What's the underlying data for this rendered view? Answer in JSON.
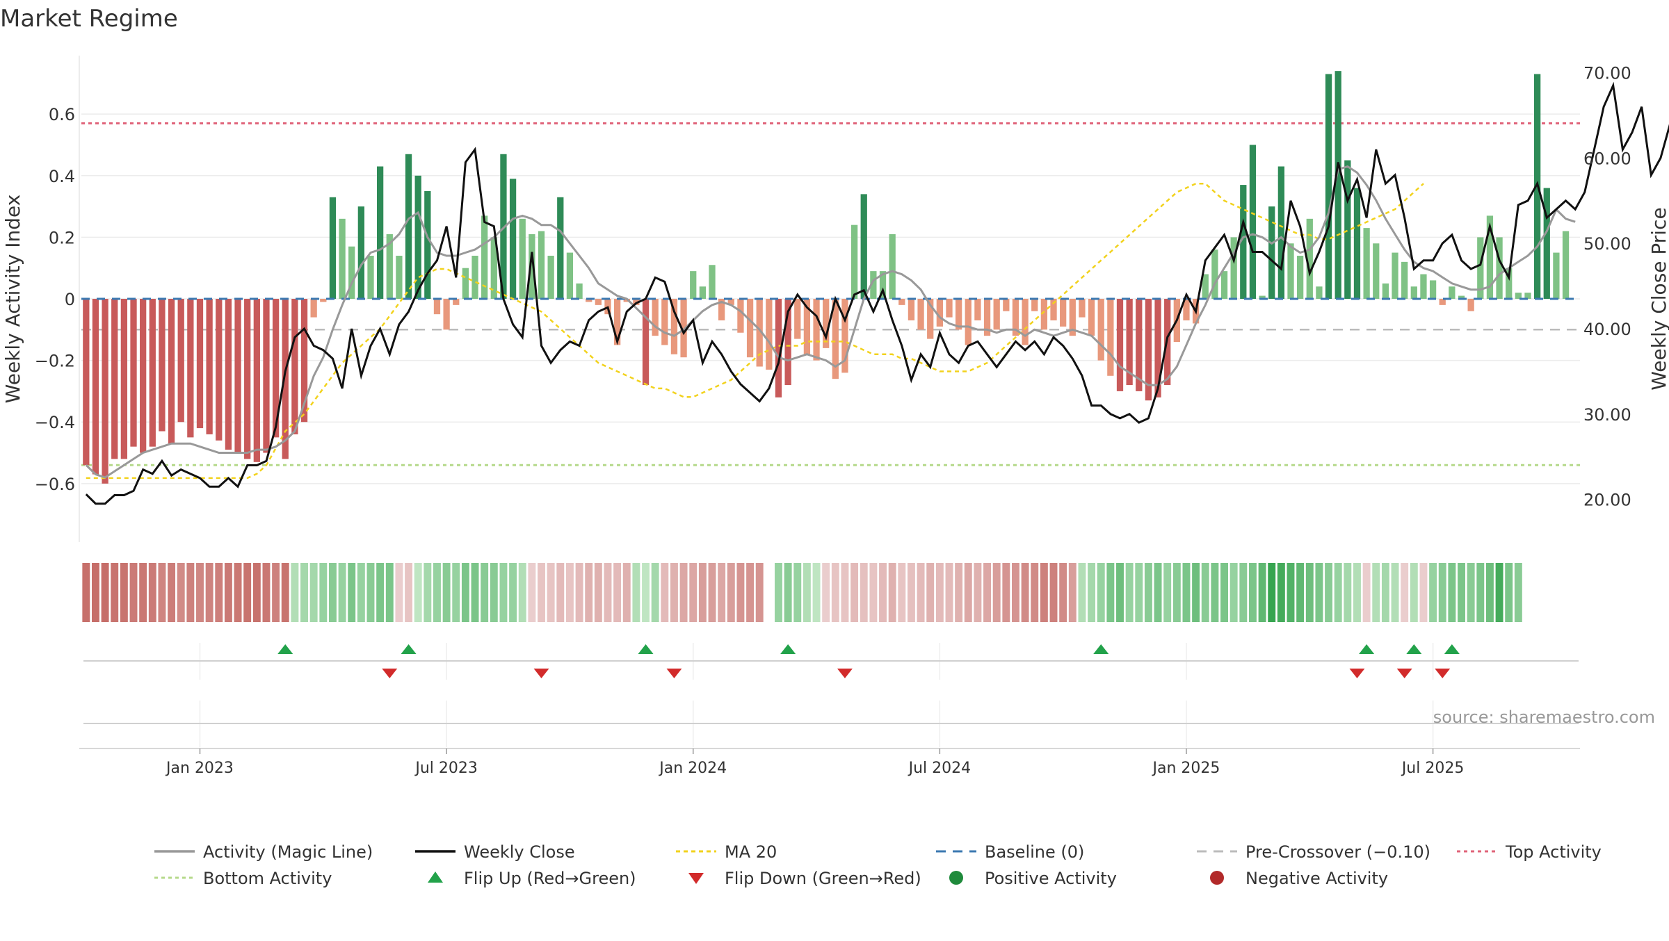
{
  "chart_data": {
    "type": "bar",
    "title": "Market Regime",
    "source": "source: sharemaestro.com",
    "ylabel_left": "Weekly Activity Index",
    "ylabel_right": "Weekly Close Price",
    "ylim_left": [
      -0.79,
      0.79
    ],
    "ylim_right": [
      15,
      72
    ],
    "left_ticks": [
      {
        "v": 0.6,
        "label": "0.6"
      },
      {
        "v": 0.4,
        "label": "0.4"
      },
      {
        "v": 0.2,
        "label": "0.2"
      },
      {
        "v": 0,
        "label": "0"
      },
      {
        "v": -0.2,
        "label": "−0.2"
      },
      {
        "v": -0.4,
        "label": "−0.4"
      },
      {
        "v": -0.6,
        "label": "−0.6"
      }
    ],
    "right_ticks": [
      {
        "v": 70,
        "label": "70.00"
      },
      {
        "v": 60,
        "label": "60.00"
      },
      {
        "v": 50,
        "label": "50.00"
      },
      {
        "v": 40,
        "label": "40.00"
      },
      {
        "v": 30,
        "label": "30.00"
      },
      {
        "v": 20,
        "label": "20.00"
      }
    ],
    "x_ticks": [
      {
        "i": 12,
        "label": "Jan 2023"
      },
      {
        "i": 38,
        "label": "Jul 2023"
      },
      {
        "i": 64,
        "label": "Jan 2024"
      },
      {
        "i": 90,
        "label": "Jul 2024"
      },
      {
        "i": 116,
        "label": "Jan 2025"
      },
      {
        "i": 142,
        "label": "Jul 2025"
      }
    ],
    "weeks": 158,
    "reference_lines": {
      "top_activity": 0.57,
      "bottom_activity": -0.54,
      "pre_crossover": -0.1,
      "baseline": 0
    },
    "activity_index": [
      -0.54,
      -0.57,
      -0.6,
      -0.52,
      -0.52,
      -0.48,
      -0.5,
      -0.48,
      -0.43,
      -0.47,
      -0.4,
      -0.45,
      -0.42,
      -0.44,
      -0.46,
      -0.49,
      -0.5,
      -0.52,
      -0.53,
      -0.5,
      -0.45,
      -0.52,
      -0.44,
      -0.4,
      -0.06,
      -0.01,
      0.33,
      0.26,
      0.17,
      0.3,
      0.14,
      0.43,
      0.21,
      0.14,
      0.47,
      0.4,
      0.35,
      -0.05,
      -0.1,
      -0.02,
      0.1,
      0.14,
      0.27,
      0.2,
      0.47,
      0.39,
      0.26,
      0.21,
      0.22,
      0.14,
      0.33,
      0.15,
      0.05,
      -0.01,
      -0.02,
      -0.05,
      -0.15,
      -0.01,
      -0.02,
      -0.28,
      -0.12,
      -0.15,
      -0.18,
      -0.19,
      0.09,
      0.04,
      0.11,
      -0.07,
      -0.02,
      -0.11,
      -0.19,
      -0.22,
      -0.23,
      -0.32,
      -0.28,
      -0.13,
      -0.18,
      -0.2,
      -0.16,
      -0.26,
      -0.24,
      0.24,
      0.34,
      0.09,
      0.09,
      0.21,
      -0.02,
      -0.07,
      -0.1,
      -0.13,
      -0.09,
      -0.06,
      -0.1,
      -0.15,
      -0.07,
      -0.12,
      -0.1,
      -0.04,
      -0.12,
      -0.15,
      -0.04,
      -0.1,
      -0.07,
      -0.09,
      -0.12,
      -0.06,
      -0.12,
      -0.2,
      -0.25,
      -0.3,
      -0.28,
      -0.3,
      -0.33,
      -0.32,
      -0.28,
      -0.14,
      -0.07,
      -0.08,
      0.08,
      0.16,
      0.09,
      0.2,
      0.37,
      0.5,
      0.01,
      0.3,
      0.43,
      0.18,
      0.14,
      0.26,
      0.04,
      0.73,
      0.74,
      0.45,
      0.36,
      0.23,
      0.18,
      0.05,
      0.15,
      0.12,
      0.04,
      0.08,
      0.06,
      -0.02,
      0.04,
      0.01,
      -0.04,
      0.2,
      0.27,
      0.2,
      0.1,
      0.02,
      0.02,
      0.73,
      0.36,
      0.15,
      0.22
    ],
    "magic_line": [
      -0.54,
      -0.57,
      -0.58,
      -0.56,
      -0.54,
      -0.52,
      -0.5,
      -0.49,
      -0.48,
      -0.47,
      -0.47,
      -0.47,
      -0.48,
      -0.49,
      -0.5,
      -0.5,
      -0.5,
      -0.5,
      -0.49,
      -0.49,
      -0.48,
      -0.46,
      -0.43,
      -0.34,
      -0.25,
      -0.19,
      -0.1,
      -0.02,
      0.05,
      0.11,
      0.15,
      0.16,
      0.18,
      0.21,
      0.26,
      0.28,
      0.2,
      0.15,
      0.14,
      0.14,
      0.15,
      0.16,
      0.18,
      0.2,
      0.23,
      0.26,
      0.27,
      0.26,
      0.24,
      0.24,
      0.22,
      0.18,
      0.14,
      0.1,
      0.05,
      0.03,
      0.01,
      0.0,
      -0.03,
      -0.06,
      -0.09,
      -0.11,
      -0.12,
      -0.1,
      -0.07,
      -0.04,
      -0.02,
      -0.01,
      -0.02,
      -0.04,
      -0.07,
      -0.1,
      -0.14,
      -0.19,
      -0.2,
      -0.19,
      -0.18,
      -0.19,
      -0.2,
      -0.22,
      -0.2,
      -0.1,
      0.0,
      0.06,
      0.08,
      0.09,
      0.08,
      0.06,
      0.03,
      -0.02,
      -0.06,
      -0.08,
      -0.09,
      -0.09,
      -0.1,
      -0.1,
      -0.11,
      -0.1,
      -0.1,
      -0.12,
      -0.1,
      -0.11,
      -0.12,
      -0.11,
      -0.1,
      -0.11,
      -0.12,
      -0.15,
      -0.18,
      -0.22,
      -0.24,
      -0.26,
      -0.28,
      -0.28,
      -0.26,
      -0.22,
      -0.15,
      -0.08,
      -0.02,
      0.05,
      0.1,
      0.15,
      0.2,
      0.21,
      0.2,
      0.18,
      0.2,
      0.17,
      0.15,
      0.16,
      0.2,
      0.28,
      0.42,
      0.43,
      0.41,
      0.37,
      0.32,
      0.26,
      0.21,
      0.16,
      0.12,
      0.1,
      0.09,
      0.07,
      0.05,
      0.04,
      0.03,
      0.03,
      0.04,
      0.08,
      0.1,
      0.12,
      0.14,
      0.17,
      0.22,
      0.29,
      0.26,
      0.25
    ],
    "weekly_close": [
      20.6,
      19.5,
      19.5,
      20.5,
      20.5,
      21,
      23.5,
      23,
      24.5,
      22.8,
      23.5,
      23,
      22.5,
      21.5,
      21.5,
      22.5,
      21.5,
      24,
      24,
      24.5,
      28.5,
      35,
      39,
      40,
      38,
      37.5,
      36.5,
      33,
      40,
      34.5,
      38,
      40,
      37,
      40.5,
      42,
      44.5,
      46.5,
      48,
      52,
      46,
      59.5,
      61,
      52.5,
      52,
      43.5,
      40.5,
      39,
      49,
      38,
      36,
      37.5,
      38.5,
      38,
      41,
      42,
      42.5,
      38.5,
      42,
      43,
      43.5,
      46,
      45.5,
      42,
      39.5,
      41,
      36,
      38.5,
      37,
      35,
      33.5,
      32.5,
      31.5,
      33,
      36,
      42,
      44,
      42.5,
      41.5,
      39,
      43.5,
      41,
      44,
      44.5,
      42,
      44.5,
      41,
      38,
      34,
      37,
      35.5,
      39.5,
      37,
      36,
      38,
      38.5,
      37,
      35.5,
      37,
      38.5,
      37.5,
      38.5,
      37,
      39,
      38,
      36.5,
      34.5,
      31,
      31,
      30,
      29.5,
      30,
      29,
      29.5,
      33,
      39,
      41,
      44,
      42,
      48,
      49.5,
      51,
      48,
      52.5,
      49,
      49,
      48,
      47,
      55,
      52,
      46.5,
      49,
      52,
      59.5,
      55,
      57.5,
      53,
      61,
      57,
      58,
      53,
      47,
      48,
      48,
      50,
      51,
      48,
      47,
      47.5,
      52,
      48,
      46,
      54.5,
      55,
      57,
      53,
      54,
      55,
      54,
      56,
      61,
      66,
      68.5,
      61,
      63,
      66,
      58,
      60,
      64
    ],
    "ma20": [
      22.5,
      22.5,
      22.5,
      22.5,
      22.5,
      22.5,
      22.5,
      22.5,
      22.5,
      22.5,
      22.5,
      22.5,
      22.5,
      22.5,
      22.5,
      22.5,
      22.5,
      22.5,
      23,
      24,
      26,
      28,
      29,
      30,
      31.5,
      33,
      34.5,
      36,
      37,
      38,
      39,
      40,
      41.5,
      43,
      44.5,
      46,
      46.5,
      47,
      47,
      46.5,
      46,
      45.5,
      45,
      44.5,
      44,
      43.5,
      43,
      42.5,
      42,
      41,
      40,
      39,
      38,
      37,
      36,
      35.5,
      35,
      34.5,
      34,
      33.5,
      33,
      33,
      32.5,
      32,
      32,
      32.5,
      33,
      33.5,
      34,
      35,
      36,
      37,
      37.5,
      38,
      38,
      38,
      38.5,
      38.5,
      38.5,
      38.5,
      38.5,
      38,
      37.5,
      37,
      37,
      37,
      36.5,
      36.5,
      36,
      35.5,
      35,
      35,
      35,
      35,
      35.5,
      36,
      37,
      38,
      39,
      40,
      41,
      42,
      43,
      44,
      45,
      46,
      47,
      48,
      49,
      50,
      51,
      52,
      53,
      54,
      55,
      56,
      56.5,
      57,
      57,
      56,
      55,
      54.5,
      54,
      53.5,
      53,
      52.5,
      52,
      51.5,
      51,
      51,
      50.5,
      50.5,
      51,
      51.5,
      52,
      52.5,
      53,
      53.5,
      54,
      55,
      56,
      57
    ],
    "regime_strip": [
      -0.54,
      -0.57,
      -0.6,
      -0.52,
      -0.52,
      -0.48,
      -0.5,
      -0.48,
      -0.43,
      -0.47,
      -0.4,
      -0.45,
      -0.42,
      -0.44,
      -0.46,
      -0.49,
      -0.5,
      -0.52,
      -0.53,
      -0.5,
      -0.45,
      -0.52,
      0.1,
      0.15,
      0.15,
      0.2,
      0.25,
      0.2,
      0.3,
      0.2,
      0.25,
      0.3,
      0.3,
      -0.05,
      -0.1,
      0.05,
      0.15,
      0.2,
      0.25,
      0.2,
      0.3,
      0.3,
      0.25,
      0.25,
      0.2,
      0.2,
      0.1,
      -0.05,
      -0.1,
      -0.1,
      -0.15,
      -0.1,
      -0.15,
      -0.2,
      -0.2,
      -0.15,
      -0.15,
      -0.2,
      0.1,
      0.05,
      0.15,
      -0.15,
      -0.2,
      -0.25,
      -0.25,
      -0.3,
      -0.3,
      -0.25,
      -0.3,
      -0.35,
      -0.35,
      -0.35,
      null,
      0.2,
      0.25,
      0.2,
      0.1,
      0.05,
      -0.05,
      -0.1,
      -0.1,
      -0.15,
      -0.12,
      -0.1,
      -0.15,
      -0.2,
      -0.1,
      -0.12,
      -0.15,
      -0.2,
      -0.15,
      -0.15,
      -0.2,
      -0.25,
      -0.2,
      -0.25,
      -0.3,
      -0.35,
      -0.35,
      -0.4,
      -0.4,
      -0.45,
      -0.45,
      -0.4,
      -0.3,
      0.1,
      0.15,
      0.2,
      0.3,
      0.35,
      0.2,
      0.2,
      0.25,
      0.3,
      0.2,
      0.25,
      0.3,
      0.35,
      0.25,
      0.3,
      0.3,
      0.2,
      0.25,
      0.3,
      0.4,
      0.55,
      0.5,
      0.45,
      0.4,
      0.35,
      0.3,
      0.25,
      0.2,
      0.15,
      0.1,
      -0.05,
      0.1,
      0.15,
      0.1,
      -0.05,
      0.1,
      -0.05,
      0.2,
      0.25,
      0.3,
      0.3,
      0.25,
      0.3,
      0.35,
      0.5,
      0.3,
      0.25
    ],
    "flip_up_weeks": [
      21,
      34,
      59,
      74,
      107,
      135,
      140,
      144
    ],
    "flip_down_weeks": [
      32,
      48,
      62,
      80,
      134,
      139,
      143
    ],
    "legend": [
      "Activity (Magic Line)",
      "Weekly Close",
      "MA 20",
      "Baseline (0)",
      "Pre-Crossover (−0.10)",
      "Top Activity",
      "Bottom Activity",
      "Flip Up (Red→Green)",
      "Flip Down (Green→Red)",
      "Positive Activity",
      "Negative Activity"
    ],
    "colors": {
      "magic_line": "#999999",
      "weekly_close": "#111111",
      "ma20": "#f2d21d",
      "baseline": "#3b78b0",
      "pre_crossover": "#bbbbbb",
      "top_activity": "#e0647a",
      "bottom_activity": "#b5d98a",
      "flip_up": "#22a24a",
      "flip_down": "#d22b2b",
      "positive": "#1f8a3b",
      "negative": "#b22a2a"
    }
  }
}
